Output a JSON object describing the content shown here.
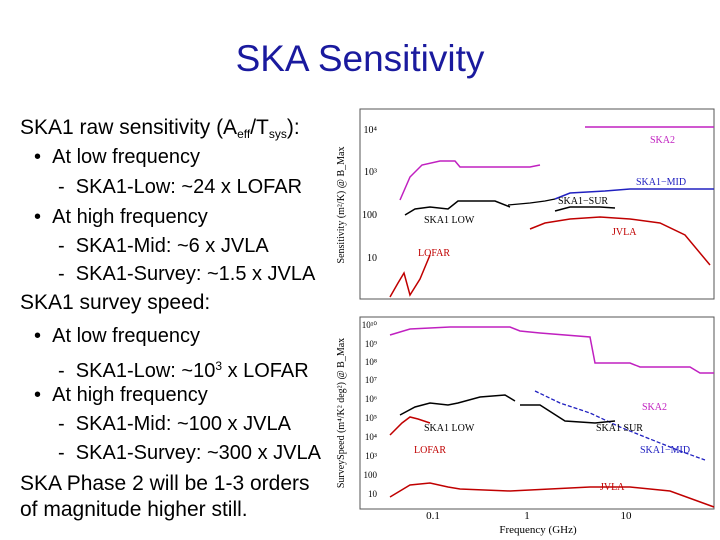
{
  "title": "SKA Sensitivity",
  "raw": {
    "pre": "SKA1 raw sensitivity (A",
    "sub1": "eff",
    "mid": "/T",
    "sub2": "sys",
    "post": "):",
    "low_heading": "At low frequency",
    "low_item": "SKA1-Low: ~24 x LOFAR",
    "high_heading": "At high frequency",
    "high_item1": "SKA1-Mid: ~6 x JVLA",
    "high_item2": "SKA1-Survey: ~1.5 x JVLA"
  },
  "survey": {
    "heading": "SKA1 survey speed:",
    "low_heading": "At low frequency",
    "low_item_pre": "SKA1-Low: ~10",
    "low_item_sup": "3",
    "low_item_post": " x LOFAR",
    "high_heading": "At high frequency",
    "high_item1": "SKA1-Mid: ~100 x JVLA",
    "high_item2": "SKA1-Survey: ~300 x JVLA"
  },
  "phase2": {
    "line1": "SKA Phase 2 will be 1-3 orders",
    "line2": "of magnitude higher still."
  },
  "bullet": "•",
  "dash": "-",
  "figure": {
    "top_ylabel": "Sensitivity (m²/K) @ B_Max",
    "bottom_ylabel": "SurveySpeed (m⁴/K² deg²) @ B_Max",
    "xlabel": "Frequency (GHz)",
    "x_ticks": [
      "0.1",
      "1",
      "10"
    ],
    "top_y_ticks": [
      "10⁴",
      "10³",
      "100",
      "10"
    ],
    "bottom_y_ticks": [
      "10¹⁰",
      "10⁹",
      "10⁸",
      "10⁷",
      "10⁶",
      "10⁵",
      "10⁴",
      "10³",
      "100",
      "10"
    ],
    "top_labels": [
      "SKA2",
      "SKA1−MID",
      "SKA1−SUR",
      "SKA1 LOW",
      "JVLA",
      "LOFAR"
    ],
    "bottom_labels": [
      "SKA2",
      "SKA1 SUR",
      "SKA1 LOW",
      "SKA1−MID",
      "LOFAR",
      "JVLA"
    ]
  },
  "colors": {
    "title": "#1a1a9e",
    "ska2": "#c020c0",
    "mid": "#2020c0",
    "sur": "#000000",
    "low": "#000000",
    "jvla": "#c00000",
    "lofar": "#c00000"
  }
}
